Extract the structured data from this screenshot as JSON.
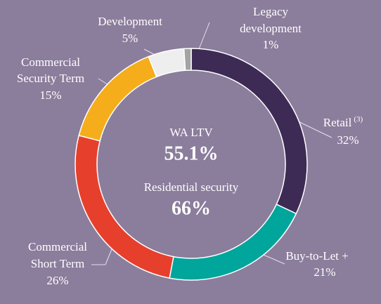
{
  "chart_data": {
    "type": "donut",
    "series": [
      {
        "name": "Retail",
        "footnote": "(3)",
        "values": [
          32
        ],
        "value_labels": [
          "32%"
        ],
        "color": "#3d2b55"
      },
      {
        "name": "Buy-to-Let +",
        "values": [
          21
        ],
        "value_labels": [
          "21%"
        ],
        "color": "#00a59b"
      },
      {
        "name": "Commercial Short Term",
        "values": [
          26
        ],
        "value_labels": [
          "26%"
        ],
        "color": "#e63f2c"
      },
      {
        "name": "Commercial Security Term",
        "values": [
          15
        ],
        "value_labels": [
          "15%"
        ],
        "color": "#f5ad1b"
      },
      {
        "name": "Development",
        "values": [
          5
        ],
        "value_labels": [
          "5%"
        ],
        "color": "#eeeeee"
      },
      {
        "name": "Legacy development",
        "values": [
          1
        ],
        "value_labels": [
          "1%"
        ],
        "color": "#a3a3a3"
      }
    ],
    "center_texts": [
      "WA LTV",
      "55.1%",
      "Residential security",
      "66%"
    ]
  }
}
